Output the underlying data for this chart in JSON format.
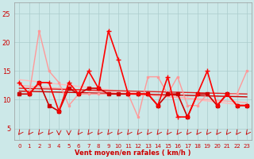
{
  "background_color": "#cce8e8",
  "grid_color": "#aacccc",
  "xlabel": "Vent moyen/en rafales ( km/h )",
  "xlim": [
    -0.5,
    23.5
  ],
  "ylim": [
    3,
    27
  ],
  "yticks": [
    5,
    10,
    15,
    20,
    25
  ],
  "xticks": [
    0,
    1,
    2,
    3,
    4,
    5,
    6,
    7,
    8,
    9,
    10,
    11,
    12,
    13,
    14,
    15,
    16,
    17,
    18,
    19,
    20,
    21,
    22,
    23
  ],
  "series": [
    {
      "x": [
        0,
        1,
        2,
        3,
        4,
        5,
        6,
        7,
        8,
        9,
        10,
        11,
        12,
        13,
        14,
        15,
        16,
        17,
        18,
        19,
        20,
        21,
        22,
        23
      ],
      "y": [
        13,
        11,
        22,
        15,
        13,
        9,
        11,
        11,
        11,
        11,
        11,
        11,
        7,
        14,
        14,
        11,
        14,
        9,
        9,
        11,
        9,
        11,
        11,
        15
      ],
      "color": "#ff9999",
      "lw": 1.0,
      "marker": "s",
      "ms": 2.0,
      "zorder": 3
    },
    {
      "x": [
        0,
        23
      ],
      "y": [
        13.5,
        9.0
      ],
      "color": "#ffbbbb",
      "lw": 1.0,
      "marker": null,
      "ms": 0,
      "zorder": 2
    },
    {
      "x": [
        0,
        23
      ],
      "y": [
        12.5,
        9.5
      ],
      "color": "#ffaaaa",
      "lw": 1.0,
      "marker": null,
      "ms": 0,
      "zorder": 2
    },
    {
      "x": [
        0,
        23
      ],
      "y": [
        12.0,
        11.0
      ],
      "color": "#dd2222",
      "lw": 1.0,
      "marker": null,
      "ms": 0,
      "zorder": 2
    },
    {
      "x": [
        0,
        23
      ],
      "y": [
        11.5,
        10.5
      ],
      "color": "#cc0000",
      "lw": 1.0,
      "marker": null,
      "ms": 0,
      "zorder": 2
    },
    {
      "x": [
        0,
        1,
        2,
        3,
        4,
        5,
        6,
        7,
        8,
        9,
        10,
        11,
        12,
        13,
        14,
        15,
        16,
        17,
        18,
        19,
        20,
        21,
        22,
        23
      ],
      "y": [
        13,
        11,
        13,
        13,
        8,
        13,
        11,
        15,
        12,
        22,
        17,
        11,
        11,
        11,
        9,
        14,
        7,
        7,
        11,
        15,
        9,
        11,
        9,
        9
      ],
      "color": "#ff0000",
      "lw": 1.2,
      "marker": "+",
      "ms": 4,
      "zorder": 6
    },
    {
      "x": [
        0,
        1,
        2,
        3,
        4,
        5,
        6,
        7,
        8,
        9,
        10,
        11,
        12,
        13,
        14,
        15,
        16,
        17,
        18,
        19,
        20,
        21,
        22,
        23
      ],
      "y": [
        11,
        11,
        13,
        9,
        8,
        12,
        11,
        12,
        12,
        11,
        11,
        11,
        11,
        11,
        9,
        11,
        11,
        7,
        11,
        11,
        9,
        11,
        9,
        9
      ],
      "color": "#cc0000",
      "lw": 1.2,
      "marker": "s",
      "ms": 2.5,
      "zorder": 5
    }
  ],
  "arrow_color": "#cc0000",
  "wind_x": [
    0,
    1,
    2,
    3,
    4,
    5,
    6,
    7,
    8,
    9,
    10,
    11,
    12,
    13,
    14,
    15,
    16,
    17,
    18,
    19,
    20,
    21,
    22,
    23
  ],
  "wind_angles_deg": [
    225,
    225,
    225,
    225,
    270,
    270,
    225,
    225,
    225,
    225,
    225,
    225,
    225,
    225,
    225,
    225,
    225,
    225,
    225,
    225,
    225,
    225,
    225,
    225
  ]
}
